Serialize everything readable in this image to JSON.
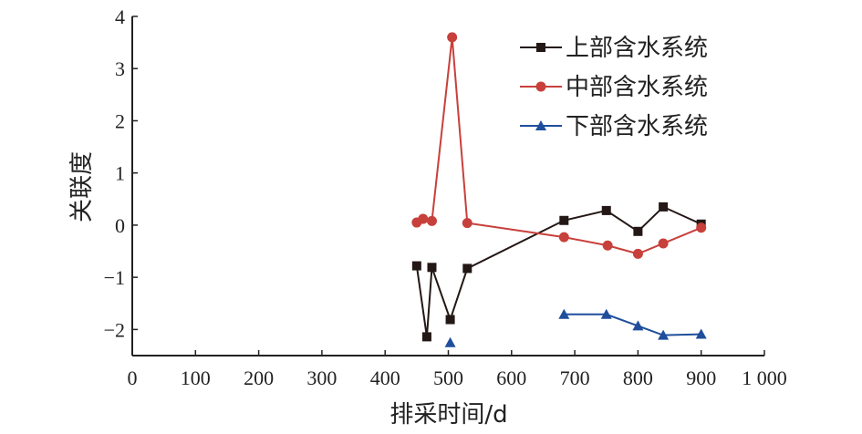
{
  "chart_data": {
    "type": "line",
    "xlabel": "排采时间/d",
    "ylabel": "关联度",
    "xlim": [
      0,
      1000
    ],
    "ylim": [
      -2.5,
      4
    ],
    "xticks": [
      0,
      100,
      200,
      300,
      400,
      500,
      600,
      700,
      800,
      900,
      1000
    ],
    "xtick_labels": [
      "0",
      "100",
      "200",
      "300",
      "400",
      "500",
      "600",
      "700",
      "800",
      "900",
      "1 000"
    ],
    "yticks": [
      -2,
      -1,
      0,
      1,
      2,
      3,
      4
    ],
    "ytick_labels": [
      "−2",
      "−1",
      "0",
      "1",
      "2",
      "3",
      "4"
    ],
    "grid": false,
    "legend_position": "top-right",
    "series": [
      {
        "name": "上部含水系统",
        "color": "#231815",
        "marker": "square",
        "points": [
          [
            450,
            -0.78
          ],
          [
            466,
            -2.14
          ],
          [
            474,
            -0.81
          ],
          [
            503,
            -1.81
          ],
          [
            530,
            -0.83
          ],
          [
            683,
            0.09
          ],
          [
            750,
            0.28
          ],
          [
            800,
            -0.12
          ],
          [
            840,
            0.35
          ],
          [
            900,
            0.02
          ]
        ]
      },
      {
        "name": "中部含水系统",
        "color": "#c8403b",
        "marker": "circle",
        "points": [
          [
            450,
            0.05
          ],
          [
            460,
            0.12
          ],
          [
            474,
            0.08
          ],
          [
            506,
            3.6
          ],
          [
            530,
            0.04
          ],
          [
            683,
            -0.23
          ],
          [
            752,
            -0.39
          ],
          [
            800,
            -0.55
          ],
          [
            840,
            -0.35
          ],
          [
            900,
            -0.05
          ]
        ]
      },
      {
        "name": "下部含水系统",
        "color": "#1f4e9c",
        "marker": "triangle",
        "segments": [
          [
            [
              503,
              -2.25
            ]
          ],
          [
            [
              683,
              -1.71
            ],
            [
              750,
              -1.71
            ],
            [
              800,
              -1.93
            ],
            [
              840,
              -2.11
            ],
            [
              900,
              -2.09
            ]
          ]
        ]
      }
    ]
  }
}
